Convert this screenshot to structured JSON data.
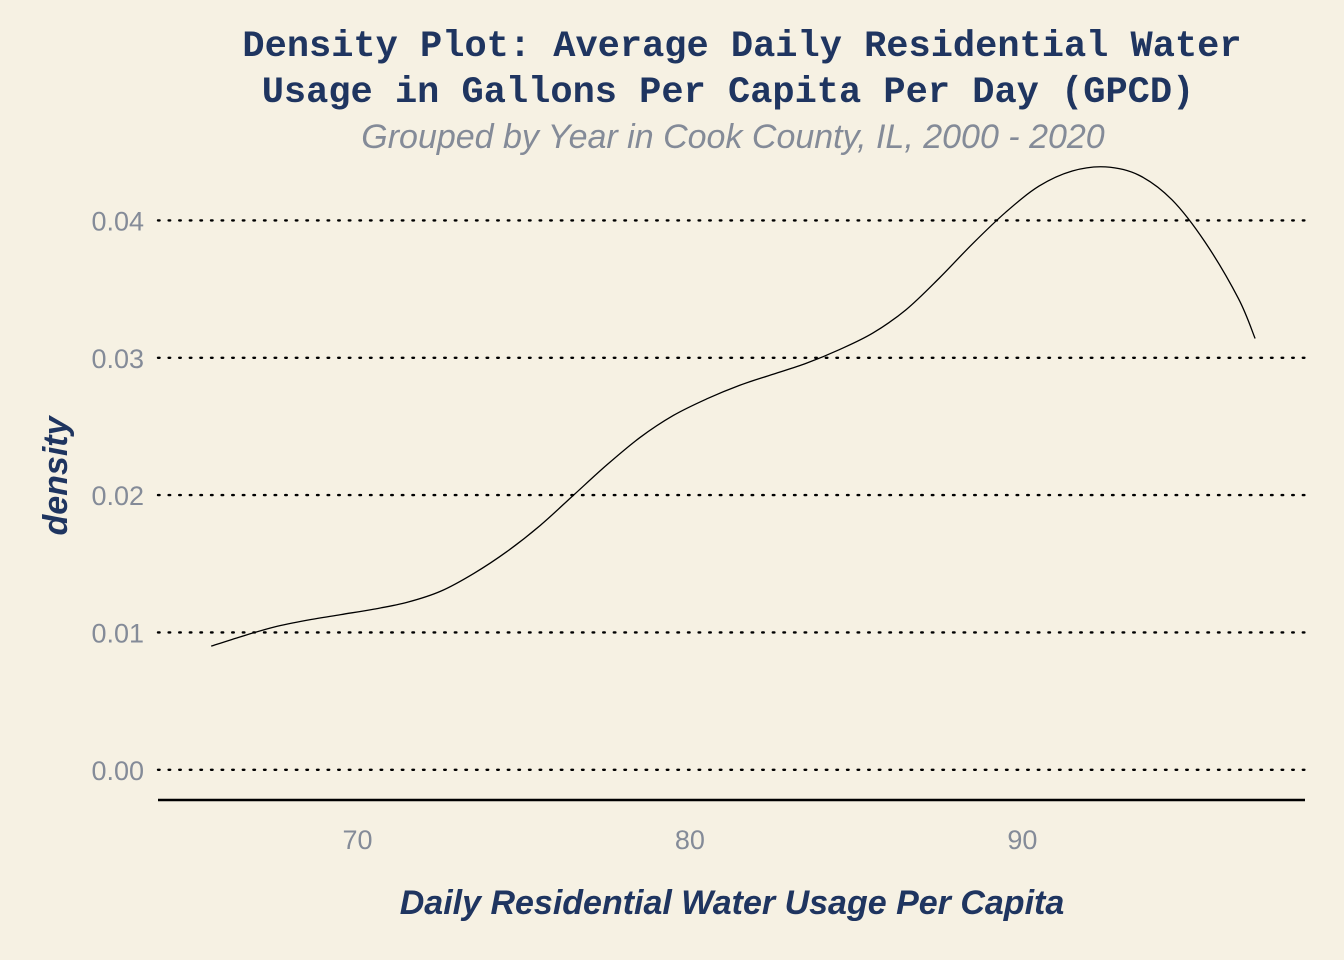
{
  "chart_data": {
    "type": "line",
    "title": "Density Plot: Average Daily Residential Water Usage in Gallons Per Capita Per Day (GPCD)",
    "title_lines": [
      "Density Plot: Average Daily Residential Water",
      "Usage in Gallons Per Capita Per Day (GPCD)"
    ],
    "subtitle": "Grouped by Year in Cook County, IL, 2000 - 2020",
    "xlabel": "Daily Residential Water Usage Per Capita",
    "ylabel": "density",
    "xlim": [
      64,
      98.5
    ],
    "ylim": [
      -0.0022,
      0.0444
    ],
    "x_ticks": [
      70,
      80,
      90
    ],
    "x_tick_labels": [
      "70",
      "80",
      "90"
    ],
    "y_ticks": [
      0.0,
      0.01,
      0.02,
      0.03,
      0.04
    ],
    "y_tick_labels": [
      "0.00",
      "0.01",
      "0.02",
      "0.03",
      "0.04"
    ],
    "grid": "horizontal dotted",
    "series": [
      {
        "x": [
          65.6,
          66.5,
          67.5,
          68.5,
          69.5,
          70.5,
          71.5,
          72.5,
          73.5,
          74.5,
          75.5,
          76.5,
          77.5,
          78.5,
          79.5,
          80.5,
          81.5,
          82.5,
          83.5,
          84.5,
          85.5,
          86.5,
          87.5,
          88.5,
          89.5,
          90.5,
          91.5,
          92.5,
          93.5,
          94.5,
          95.5,
          96.5,
          97.0
        ],
        "y": [
          0.009,
          0.0097,
          0.0104,
          0.0109,
          0.0113,
          0.0117,
          0.0122,
          0.013,
          0.0143,
          0.0159,
          0.0178,
          0.02,
          0.0222,
          0.0242,
          0.0258,
          0.027,
          0.028,
          0.0288,
          0.0296,
          0.0306,
          0.0318,
          0.0335,
          0.0358,
          0.0383,
          0.0406,
          0.0425,
          0.0436,
          0.0439,
          0.0433,
          0.0415,
          0.0384,
          0.0343,
          0.0314
        ]
      }
    ],
    "colors": {
      "background": "#f6f1e3",
      "title": "#1f3560",
      "subtitle": "#848b98",
      "tick_label": "#848b98",
      "line": "#000000"
    }
  }
}
